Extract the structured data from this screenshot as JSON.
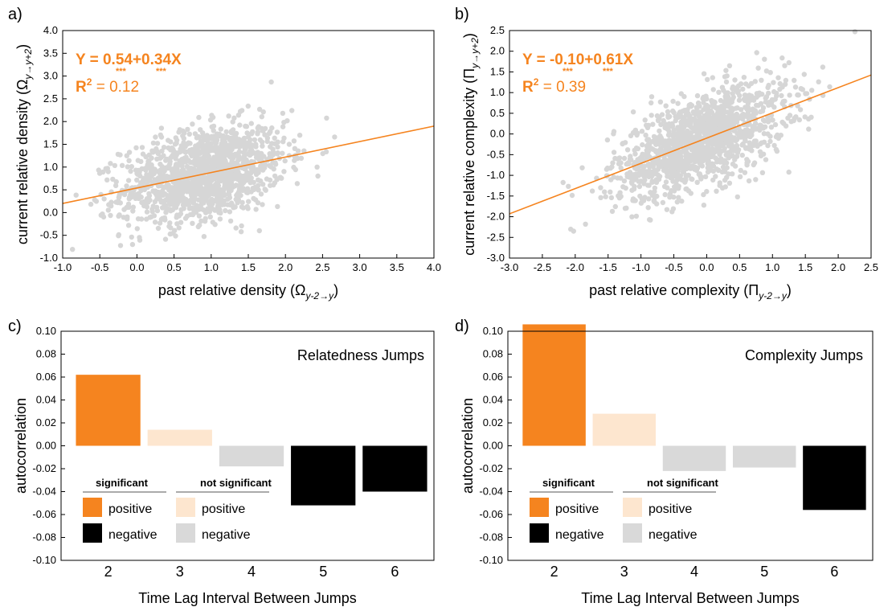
{
  "colors": {
    "orange": "#f5841f",
    "light_orange": "#fde6cf",
    "black": "#000000",
    "grey": "#d9d9d9",
    "point": "#d6d6d6",
    "fit": "#f5841f"
  },
  "chart_data": [
    {
      "panel": "a)",
      "type": "scatter",
      "xlabel": "past relative density (Ω",
      "xlabel_sub": "y-2→y",
      "xlabel_end": ")",
      "ylabel": "current relative density  (Ω",
      "ylabel_sub": "y→y+2",
      "ylabel_end": ")",
      "xlim": [
        -1.0,
        4.0
      ],
      "ylim": [
        -1.0,
        4.0
      ],
      "xticks": [
        "-1.0",
        "-0.5",
        "0.0",
        "0.5",
        "1.0",
        "1.5",
        "2.0",
        "2.5",
        "3.0",
        "3.5",
        "4.0"
      ],
      "yticks": [
        "-1.0",
        "-0.5",
        "0.0",
        "0.5",
        "1.0",
        "1.5",
        "2.0",
        "2.5",
        "3.0",
        "3.5",
        "4.0"
      ],
      "fit": {
        "intercept": 0.54,
        "slope": 0.34
      },
      "equation": "Y = 0.54+0.34X",
      "r2_label": "R",
      "r2_sup": "2",
      "r2_value": " = 0.12",
      "stars": [
        "***",
        "***"
      ],
      "points": {
        "count": 1400,
        "x_mean": 0.9,
        "x_sd": 0.55,
        "y_sd": 0.5
      }
    },
    {
      "panel": "b)",
      "type": "scatter",
      "xlabel": "past relative complexity  (Π",
      "xlabel_sub": "y-2→y",
      "xlabel_end": ")",
      "ylabel": "current relative complexity  (Π",
      "ylabel_sub": "y→y+2",
      "ylabel_end": ")",
      "xlim": [
        -3.0,
        2.5
      ],
      "ylim": [
        -3.0,
        2.5
      ],
      "xticks": [
        "-3.0",
        "-2.5",
        "-2.0",
        "-1.5",
        "-1.0",
        "-0.5",
        "0.0",
        "0.5",
        "1.0",
        "1.5",
        "2.0",
        "2.5"
      ],
      "yticks": [
        "-3.0",
        "-2.5",
        "-2.0",
        "-1.5",
        "-1.0",
        "-0.5",
        "0.0",
        "0.5",
        "1.0",
        "1.5",
        "2.0",
        "2.5"
      ],
      "fit": {
        "intercept": -0.1,
        "slope": 0.61
      },
      "equation": "Y = -0.10+0.61X",
      "r2_label": "R",
      "r2_sup": "2",
      "r2_value": " = 0.39",
      "stars": [
        "***",
        "***"
      ],
      "points": {
        "count": 1400,
        "x_mean": -0.1,
        "x_sd": 0.65,
        "y_sd": 0.55
      }
    },
    {
      "panel": "c)",
      "type": "bar",
      "title": "Relatedness Jumps",
      "xlabel": "Time Lag Interval Between Jumps",
      "ylabel": "autocorrelation",
      "categories": [
        "2",
        "3",
        "4",
        "5",
        "6"
      ],
      "values": [
        0.062,
        0.014,
        -0.018,
        -0.052,
        -0.04
      ],
      "significant": [
        true,
        false,
        false,
        true,
        true
      ],
      "ylim": [
        -0.1,
        0.1
      ],
      "yticks": [
        "0.10",
        "0.08",
        "0.06",
        "0.04",
        "0.02",
        "0.00",
        "-0.02",
        "-0.04",
        "-0.06",
        "-0.08",
        "-0.10"
      ],
      "legend": {
        "significant": "significant",
        "not_significant": "not significant",
        "positive": "positive",
        "negative": "negative"
      }
    },
    {
      "panel": "d)",
      "type": "bar",
      "title": "Complexity Jumps",
      "xlabel": "Time Lag Interval Between Jumps",
      "ylabel": "autocorrelation",
      "categories": [
        "2",
        "3",
        "4",
        "5",
        "6"
      ],
      "values": [
        0.106,
        0.028,
        -0.022,
        -0.019,
        -0.056
      ],
      "significant": [
        true,
        false,
        false,
        false,
        true
      ],
      "ylim": [
        -0.1,
        0.1
      ],
      "yticks": [
        "0.10",
        "0.08",
        "0.06",
        "0.04",
        "0.02",
        "0.00",
        "-0.02",
        "-0.04",
        "-0.06",
        "-0.08",
        "-0.10"
      ],
      "legend": {
        "significant": "significant",
        "not_significant": "not significant",
        "positive": "positive",
        "negative": "negative"
      }
    }
  ]
}
